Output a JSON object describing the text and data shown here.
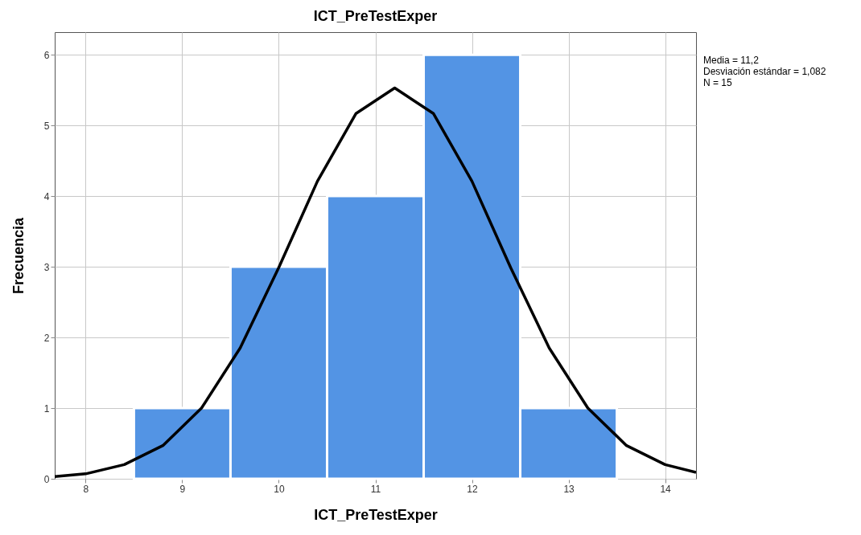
{
  "chart_data": {
    "type": "histogram",
    "title": "ICT_PreTestExper",
    "xlabel": "ICT_PreTestExper",
    "ylabel": "Frecuencia",
    "bins": [
      8.5,
      9.5,
      10.5,
      11.5,
      12.5,
      13.5
    ],
    "values": [
      1,
      3,
      4,
      6,
      1
    ],
    "color": "#5394e4",
    "series": [
      {
        "type": "line",
        "color": "#000000",
        "x": [
          7.68,
          8.0,
          8.4,
          8.8,
          9.2,
          9.6,
          10.0,
          10.4,
          10.8,
          11.2,
          11.6,
          12.0,
          12.4,
          12.8,
          13.2,
          13.6,
          14.0,
          14.32
        ],
        "values": [
          0.03,
          0.07,
          0.2,
          0.47,
          1.0,
          1.85,
          2.99,
          4.21,
          5.17,
          5.53,
          5.17,
          4.21,
          2.99,
          1.85,
          1.0,
          0.47,
          0.2,
          0.09
        ]
      }
    ],
    "xlim": [
      7.68,
      14.32
    ],
    "xticks": [
      8,
      9,
      10,
      11,
      12,
      13,
      14
    ],
    "ylim": [
      0,
      6.32
    ],
    "yticks": [
      0,
      1,
      2,
      3,
      4,
      5,
      6
    ],
    "grid": true,
    "annotations": [
      "Media = 11,2",
      "Desviación estándar = 1,082",
      "N = 15"
    ]
  }
}
